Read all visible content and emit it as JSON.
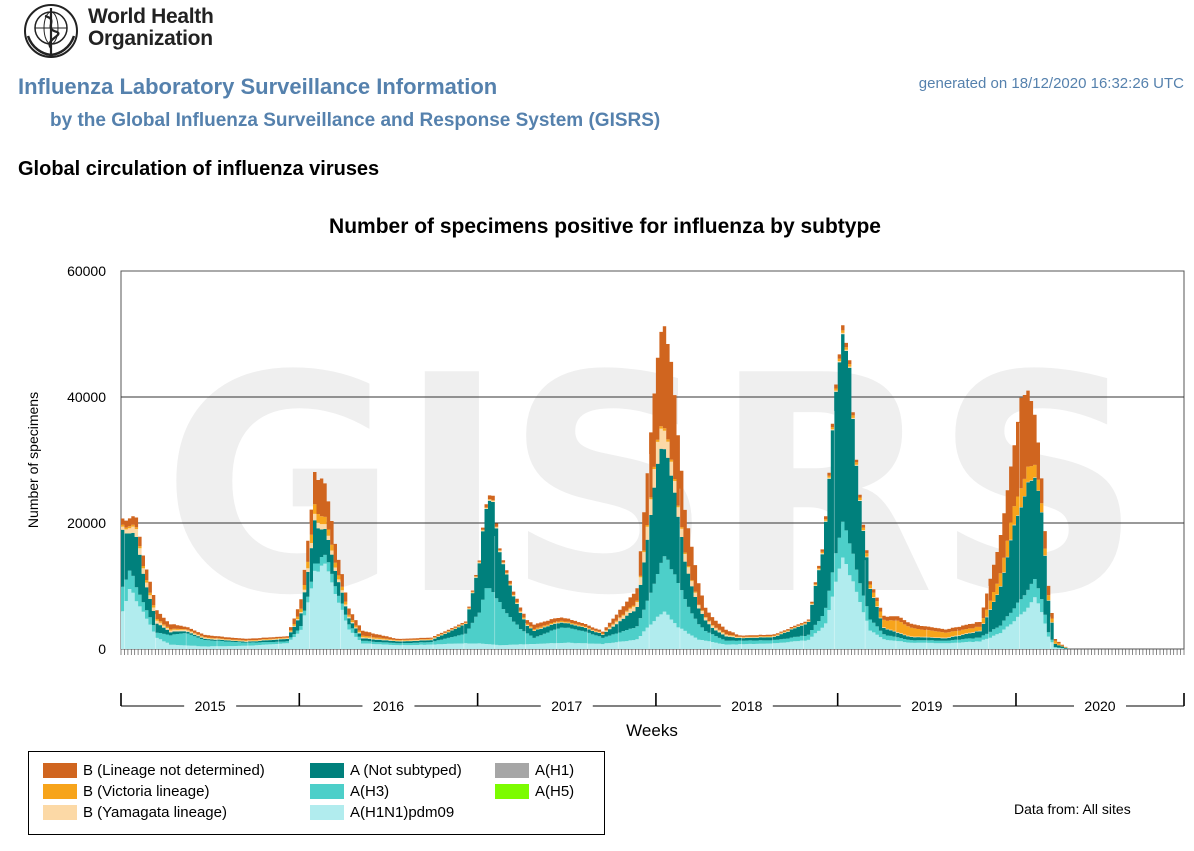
{
  "header": {
    "org_name_line1": "World Health",
    "org_name_line2": "Organization",
    "app_title": "Influenza Laboratory Surveillance Information",
    "app_subtitle": "by the Global Influenza Surveillance and Response System (GISRS)",
    "generated": "generated on 18/12/2020 16:32:26 UTC"
  },
  "section_title": "Global circulation of influenza viruses",
  "watermark": "GISRS",
  "data_from": "Data from: All sites",
  "chart_data": {
    "type": "area",
    "stacked": true,
    "title": "Number of specimens positive for influenza by subtype",
    "xlabel": "Weeks",
    "ylabel": "Number of specimens",
    "ylim": [
      0,
      60000
    ],
    "yticks": [
      0,
      20000,
      40000,
      60000
    ],
    "ytick_labels": [
      "0",
      "20000",
      "40000",
      "60000"
    ],
    "grid": "horizontal",
    "x_unit": "weeks",
    "weeks_total": 310,
    "years": [
      {
        "label": "2015",
        "start_week": 0,
        "end_week": 52
      },
      {
        "label": "2016",
        "start_week": 52,
        "end_week": 104
      },
      {
        "label": "2017",
        "start_week": 104,
        "end_week": 156
      },
      {
        "label": "2018",
        "start_week": 156,
        "end_week": 209
      },
      {
        "label": "2019",
        "start_week": 209,
        "end_week": 261
      },
      {
        "label": "2020",
        "start_week": 261,
        "end_week": 310
      }
    ],
    "legend_position": "bottom-left",
    "series": [
      {
        "name": "A(H1N1)pdm09",
        "color": "#b1ecee",
        "key_points": [
          [
            0,
            6000
          ],
          [
            2,
            9500
          ],
          [
            6,
            6000
          ],
          [
            10,
            1800
          ],
          [
            14,
            700
          ],
          [
            24,
            400
          ],
          [
            36,
            500
          ],
          [
            48,
            900
          ],
          [
            52,
            3000
          ],
          [
            56,
            12000
          ],
          [
            59,
            13500
          ],
          [
            62,
            9000
          ],
          [
            66,
            3000
          ],
          [
            70,
            900
          ],
          [
            80,
            600
          ],
          [
            90,
            700
          ],
          [
            100,
            900
          ],
          [
            104,
            900
          ],
          [
            110,
            600
          ],
          [
            120,
            800
          ],
          [
            130,
            1000
          ],
          [
            140,
            800
          ],
          [
            150,
            1500
          ],
          [
            154,
            4000
          ],
          [
            158,
            6000
          ],
          [
            162,
            3500
          ],
          [
            168,
            1500
          ],
          [
            176,
            700
          ],
          [
            190,
            900
          ],
          [
            200,
            1400
          ],
          [
            205,
            4000
          ],
          [
            208,
            10500
          ],
          [
            210,
            15000
          ],
          [
            212,
            12000
          ],
          [
            214,
            9000
          ],
          [
            218,
            3000
          ],
          [
            222,
            1500
          ],
          [
            230,
            1000
          ],
          [
            240,
            900
          ],
          [
            250,
            1200
          ],
          [
            256,
            2500
          ],
          [
            260,
            4500
          ],
          [
            264,
            6500
          ],
          [
            266,
            8000
          ],
          [
            268,
            6000
          ],
          [
            270,
            2000
          ],
          [
            272,
            200
          ],
          [
            276,
            0
          ],
          [
            310,
            0
          ]
        ]
      },
      {
        "name": "A(H3)",
        "color": "#4dcfc9",
        "key_points": [
          [
            0,
            4000
          ],
          [
            2,
            3000
          ],
          [
            6,
            1500
          ],
          [
            10,
            800
          ],
          [
            14,
            1500
          ],
          [
            18,
            2000
          ],
          [
            24,
            1000
          ],
          [
            36,
            500
          ],
          [
            48,
            300
          ],
          [
            52,
            600
          ],
          [
            56,
            1200
          ],
          [
            60,
            1500
          ],
          [
            64,
            1000
          ],
          [
            70,
            400
          ],
          [
            80,
            300
          ],
          [
            90,
            400
          ],
          [
            100,
            1500
          ],
          [
            104,
            5000
          ],
          [
            106,
            9000
          ],
          [
            108,
            8500
          ],
          [
            112,
            5000
          ],
          [
            116,
            2500
          ],
          [
            120,
            1000
          ],
          [
            128,
            2500
          ],
          [
            134,
            2000
          ],
          [
            140,
            1000
          ],
          [
            150,
            2000
          ],
          [
            154,
            5000
          ],
          [
            158,
            9000
          ],
          [
            162,
            7000
          ],
          [
            166,
            3500
          ],
          [
            170,
            1500
          ],
          [
            176,
            600
          ],
          [
            190,
            500
          ],
          [
            200,
            800
          ],
          [
            204,
            1800
          ],
          [
            208,
            4500
          ],
          [
            210,
            5500
          ],
          [
            212,
            5000
          ],
          [
            214,
            3500
          ],
          [
            218,
            1800
          ],
          [
            222,
            800
          ],
          [
            230,
            400
          ],
          [
            240,
            400
          ],
          [
            250,
            600
          ],
          [
            256,
            1200
          ],
          [
            260,
            2000
          ],
          [
            264,
            2800
          ],
          [
            266,
            3000
          ],
          [
            268,
            2000
          ],
          [
            270,
            700
          ],
          [
            272,
            100
          ],
          [
            276,
            0
          ],
          [
            310,
            0
          ]
        ]
      },
      {
        "name": "A(Not subtyped)",
        "color": "#00807c",
        "key_points": [
          [
            0,
            9000
          ],
          [
            2,
            6000
          ],
          [
            4,
            8000
          ],
          [
            6,
            4500
          ],
          [
            10,
            1500
          ],
          [
            14,
            500
          ],
          [
            18,
            300
          ],
          [
            24,
            200
          ],
          [
            36,
            150
          ],
          [
            48,
            400
          ],
          [
            52,
            2000
          ],
          [
            54,
            4000
          ],
          [
            56,
            7000
          ],
          [
            58,
            4500
          ],
          [
            62,
            2500
          ],
          [
            66,
            1000
          ],
          [
            70,
            400
          ],
          [
            80,
            300
          ],
          [
            90,
            300
          ],
          [
            100,
            1500
          ],
          [
            104,
            8000
          ],
          [
            106,
            13000
          ],
          [
            108,
            14000
          ],
          [
            110,
            8000
          ],
          [
            114,
            4000
          ],
          [
            118,
            1200
          ],
          [
            128,
            800
          ],
          [
            134,
            600
          ],
          [
            140,
            500
          ],
          [
            150,
            3000
          ],
          [
            154,
            12000
          ],
          [
            156,
            18000
          ],
          [
            158,
            17000
          ],
          [
            160,
            15000
          ],
          [
            164,
            6000
          ],
          [
            168,
            2500
          ],
          [
            172,
            1000
          ],
          [
            180,
            400
          ],
          [
            190,
            500
          ],
          [
            200,
            2000
          ],
          [
            204,
            10000
          ],
          [
            206,
            18000
          ],
          [
            208,
            26000
          ],
          [
            210,
            30000
          ],
          [
            212,
            28000
          ],
          [
            214,
            16000
          ],
          [
            218,
            5000
          ],
          [
            222,
            1000
          ],
          [
            230,
            500
          ],
          [
            240,
            400
          ],
          [
            250,
            1000
          ],
          [
            256,
            6000
          ],
          [
            260,
            13000
          ],
          [
            264,
            17000
          ],
          [
            266,
            16000
          ],
          [
            268,
            14000
          ],
          [
            270,
            5000
          ],
          [
            272,
            500
          ],
          [
            276,
            0
          ],
          [
            310,
            0
          ]
        ]
      },
      {
        "name": "B (Yamagata lineage)",
        "color": "#fcd9a6",
        "key_points": [
          [
            0,
            500
          ],
          [
            4,
            1200
          ],
          [
            8,
            600
          ],
          [
            12,
            300
          ],
          [
            20,
            200
          ],
          [
            30,
            100
          ],
          [
            48,
            100
          ],
          [
            52,
            200
          ],
          [
            56,
            1000
          ],
          [
            60,
            700
          ],
          [
            66,
            200
          ],
          [
            80,
            100
          ],
          [
            100,
            100
          ],
          [
            110,
            200
          ],
          [
            120,
            100
          ],
          [
            140,
            100
          ],
          [
            150,
            800
          ],
          [
            154,
            2500
          ],
          [
            156,
            3500
          ],
          [
            158,
            3000
          ],
          [
            162,
            1500
          ],
          [
            168,
            500
          ],
          [
            180,
            100
          ],
          [
            200,
            100
          ],
          [
            210,
            200
          ],
          [
            220,
            100
          ],
          [
            240,
            100
          ],
          [
            270,
            50
          ],
          [
            276,
            0
          ],
          [
            310,
            0
          ]
        ]
      },
      {
        "name": "B (Victoria lineage)",
        "color": "#f7a41b",
        "key_points": [
          [
            0,
            300
          ],
          [
            4,
            300
          ],
          [
            8,
            400
          ],
          [
            12,
            200
          ],
          [
            20,
            100
          ],
          [
            30,
            100
          ],
          [
            48,
            100
          ],
          [
            52,
            500
          ],
          [
            56,
            1500
          ],
          [
            60,
            1000
          ],
          [
            66,
            300
          ],
          [
            80,
            100
          ],
          [
            100,
            100
          ],
          [
            110,
            100
          ],
          [
            120,
            200
          ],
          [
            140,
            100
          ],
          [
            150,
            200
          ],
          [
            158,
            400
          ],
          [
            168,
            100
          ],
          [
            200,
            100
          ],
          [
            210,
            400
          ],
          [
            216,
            400
          ],
          [
            220,
            800
          ],
          [
            226,
            1800
          ],
          [
            232,
            1200
          ],
          [
            240,
            800
          ],
          [
            250,
            600
          ],
          [
            256,
            2000
          ],
          [
            260,
            3000
          ],
          [
            262,
            3000
          ],
          [
            266,
            2000
          ],
          [
            270,
            800
          ],
          [
            274,
            100
          ],
          [
            276,
            0
          ],
          [
            310,
            0
          ]
        ]
      },
      {
        "name": "B (Lineage not determined)",
        "color": "#d0651f",
        "key_points": [
          [
            0,
            1000
          ],
          [
            4,
            1500
          ],
          [
            8,
            1800
          ],
          [
            12,
            1000
          ],
          [
            18,
            400
          ],
          [
            30,
            300
          ],
          [
            48,
            200
          ],
          [
            52,
            1500
          ],
          [
            56,
            5000
          ],
          [
            58,
            6000
          ],
          [
            62,
            3000
          ],
          [
            66,
            1000
          ],
          [
            80,
            200
          ],
          [
            100,
            200
          ],
          [
            104,
            200
          ],
          [
            106,
            500
          ],
          [
            108,
            700
          ],
          [
            110,
            300
          ],
          [
            120,
            700
          ],
          [
            140,
            300
          ],
          [
            150,
            2000
          ],
          [
            154,
            10000
          ],
          [
            156,
            13000
          ],
          [
            158,
            16000
          ],
          [
            160,
            15000
          ],
          [
            164,
            7000
          ],
          [
            170,
            1500
          ],
          [
            180,
            200
          ],
          [
            200,
            200
          ],
          [
            206,
            500
          ],
          [
            210,
            800
          ],
          [
            214,
            400
          ],
          [
            220,
            600
          ],
          [
            226,
            700
          ],
          [
            232,
            600
          ],
          [
            240,
            500
          ],
          [
            250,
            800
          ],
          [
            256,
            6000
          ],
          [
            260,
            10000
          ],
          [
            262,
            14000
          ],
          [
            264,
            12000
          ],
          [
            266,
            8000
          ],
          [
            268,
            4000
          ],
          [
            270,
            1500
          ],
          [
            272,
            300
          ],
          [
            276,
            0
          ],
          [
            310,
            0
          ]
        ]
      },
      {
        "name": "A(H1)",
        "color": "#a6a6a6",
        "key_points": [
          [
            0,
            0
          ],
          [
            310,
            0
          ]
        ]
      },
      {
        "name": "A(H5)",
        "color": "#7cfc00",
        "key_points": [
          [
            0,
            0
          ],
          [
            310,
            0
          ]
        ]
      }
    ]
  }
}
